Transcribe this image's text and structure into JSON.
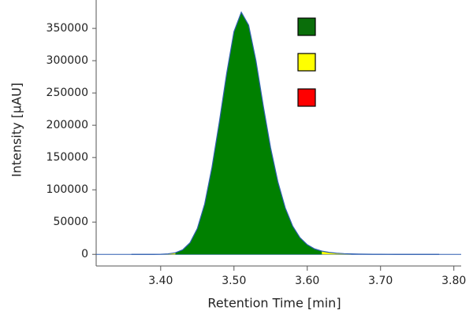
{
  "chart_data": {
    "type": "area",
    "x_label": "Retention Time [min]",
    "y_label": "Intensity [µAU]",
    "x": [
      3.36,
      3.37,
      3.38,
      3.39,
      3.4,
      3.41,
      3.42,
      3.43,
      3.44,
      3.45,
      3.46,
      3.47,
      3.48,
      3.49,
      3.5,
      3.51,
      3.52,
      3.53,
      3.54,
      3.55,
      3.56,
      3.57,
      3.58,
      3.59,
      3.6,
      3.61,
      3.62,
      3.63,
      3.64,
      3.65,
      3.66,
      3.67,
      3.68,
      3.69,
      3.7,
      3.71,
      3.72,
      3.73,
      3.74,
      3.75,
      3.76,
      3.77,
      3.78
    ],
    "series": [
      {
        "color": "#2f5fb0",
        "style": "line",
        "values": [
          0,
          0,
          0,
          0,
          200,
          800,
          2500,
          7000,
          18000,
          40000,
          78000,
          135000,
          205000,
          280000,
          345000,
          375000,
          355000,
          300000,
          230000,
          165000,
          112000,
          72000,
          44000,
          26000,
          15000,
          8500,
          5000,
          3000,
          1800,
          1100,
          700,
          400,
          250,
          150,
          100,
          50,
          0,
          0,
          0,
          0,
          0,
          0,
          0
        ]
      },
      {
        "color": "#008000",
        "style": "fill",
        "values": [
          null,
          null,
          null,
          null,
          null,
          null,
          2500,
          7000,
          18000,
          40000,
          78000,
          135000,
          205000,
          280000,
          345000,
          375000,
          355000,
          300000,
          230000,
          165000,
          112000,
          72000,
          44000,
          26000,
          15000,
          8500,
          5000,
          null,
          null,
          null,
          null,
          null,
          null,
          null,
          null,
          null,
          null,
          null,
          null,
          null,
          null,
          null,
          null
        ]
      },
      {
        "color": "#ffff00",
        "style": "fill",
        "values": [
          null,
          null,
          null,
          null,
          200,
          800,
          2500,
          null,
          null,
          null,
          null,
          null,
          null,
          null,
          null,
          null,
          null,
          null,
          null,
          null,
          null,
          null,
          null,
          null,
          null,
          null,
          5000,
          3000,
          1800,
          1100,
          700,
          null,
          null,
          null,
          null,
          null,
          null,
          null,
          null,
          null,
          null,
          null,
          null
        ]
      }
    ],
    "legend_colors": [
      "#0a6e0a",
      "#ffff00",
      "#ff0000"
    ],
    "xlim": [
      3.312,
      3.81
    ],
    "ylim": [
      -18000,
      394000
    ],
    "xticks": [
      {
        "value": 3.4,
        "label": "3.40"
      },
      {
        "value": 3.5,
        "label": "3.50"
      },
      {
        "value": 3.6,
        "label": "3.60"
      },
      {
        "value": 3.7,
        "label": "3.70"
      },
      {
        "value": 3.8,
        "label": "3.80"
      }
    ],
    "yticks": [
      0,
      50000,
      100000,
      150000,
      200000,
      250000,
      300000,
      350000
    ]
  }
}
